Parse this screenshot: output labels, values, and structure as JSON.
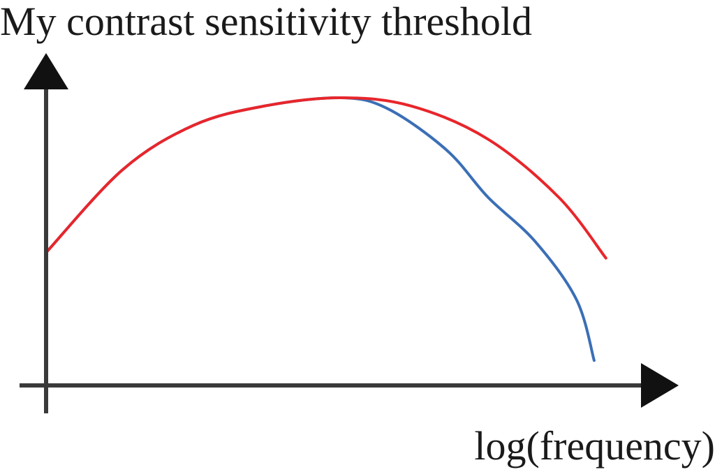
{
  "chart_data": {
    "type": "line",
    "title": "My contrast sensitivity threshold",
    "xlabel": "log(frequency)",
    "ylabel": "",
    "x_ticks": [],
    "y_ticks": [],
    "grid": false,
    "legend": "none",
    "xlim": [
      0,
      100
    ],
    "ylim": [
      0,
      100
    ],
    "series": [
      {
        "color": "#e8262b",
        "x": [
          0,
          13,
          25,
          37,
          50,
          62,
          75,
          87,
          95
        ],
        "y": [
          44,
          74,
          90,
          97,
          100,
          97,
          85,
          64,
          42
        ]
      },
      {
        "color": "#3b6fb6",
        "x": [
          0,
          13,
          25,
          37,
          50,
          58,
          68,
          75,
          83,
          90,
          93
        ],
        "y": [
          44,
          74,
          90,
          97,
          100,
          96,
          81,
          64,
          48,
          27,
          5
        ]
      }
    ]
  }
}
